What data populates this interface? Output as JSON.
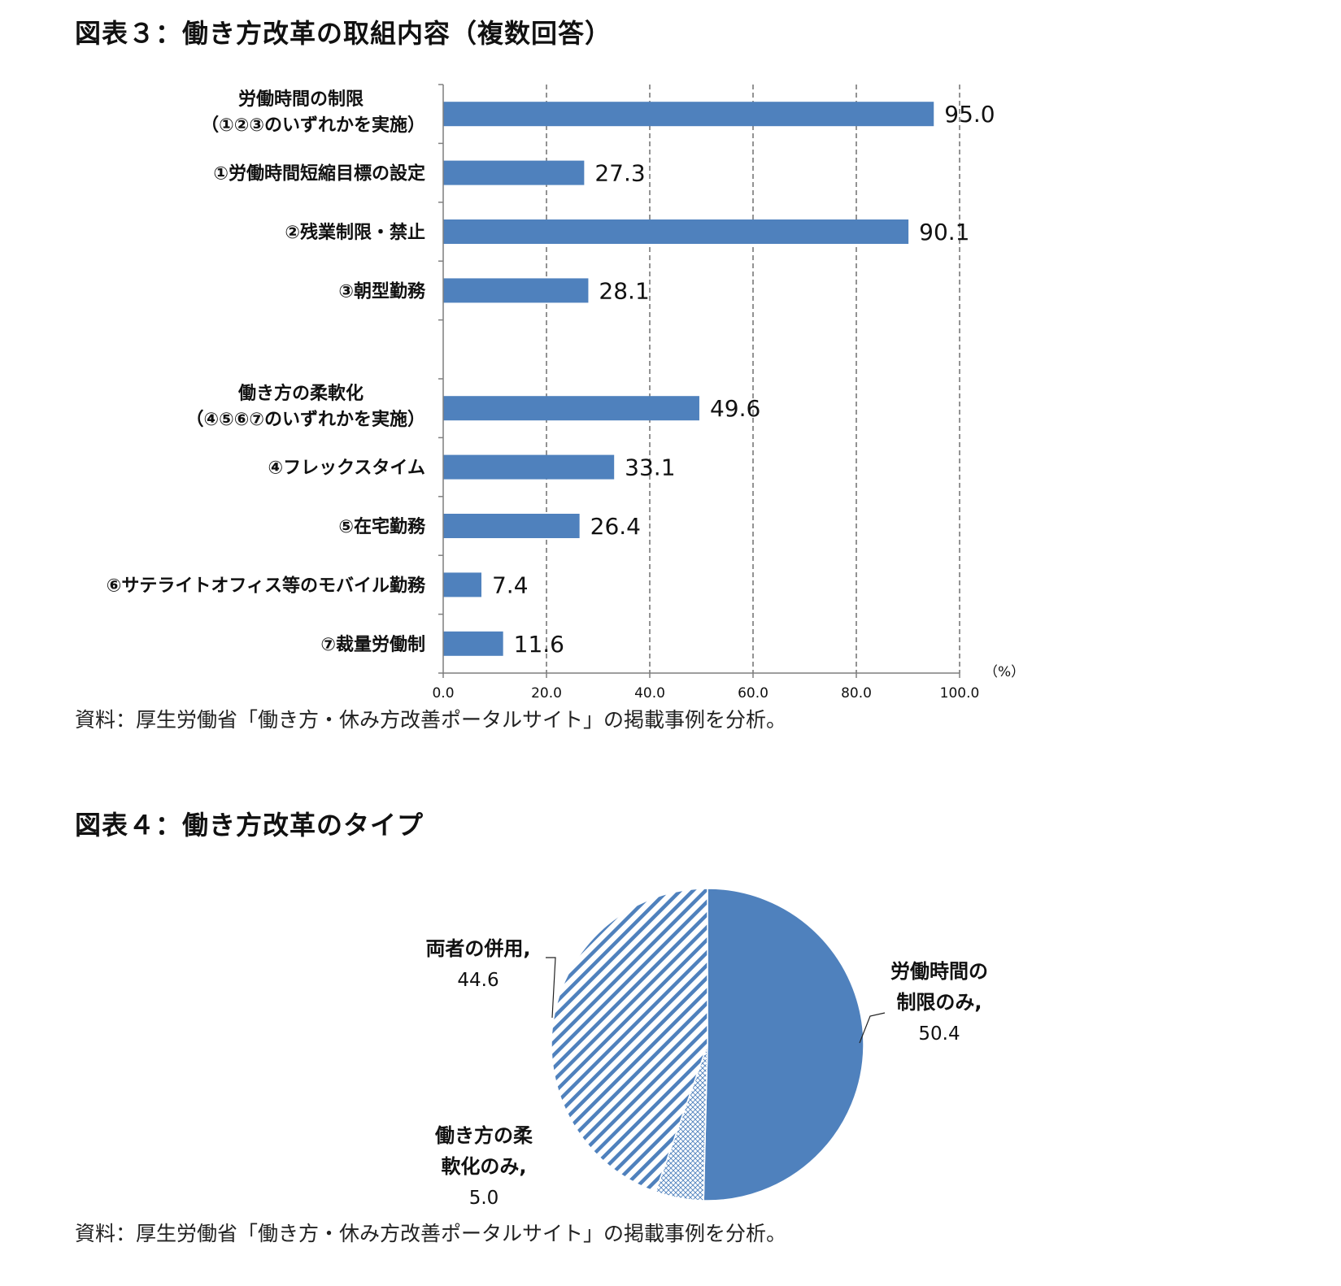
{
  "figure3": {
    "title": "図表３：働き方改革の取組内容（複数回答）",
    "source": "資料：厚生労働省「働き方・休み方改善ポータルサイト」の掲載事例を分析。"
  },
  "figure4": {
    "title": "図表４：働き方改革のタイプ",
    "source": "資料：厚生労働省「働き方・休み方改善ポータルサイト」の掲載事例を分析。"
  },
  "colors": {
    "bar": "#4F81BD",
    "hatch": "#4F81BD",
    "axis": "#7f7f7f"
  },
  "chart_data": [
    {
      "type": "bar",
      "orientation": "horizontal",
      "categories": [
        [
          "労働時間の制限",
          "（①②③のいずれかを実施）"
        ],
        [
          "①労働時間短縮目標の設定"
        ],
        [
          "②残業制限・禁止"
        ],
        [
          "③朝型勤務"
        ],
        [],
        [
          "働き方の柔軟化",
          "（④⑤⑥⑦のいずれかを実施）"
        ],
        [
          "④フレックスタイム"
        ],
        [
          "⑤在宅勤務"
        ],
        [
          "⑥サテライトオフィス等のモバイル勤務"
        ],
        [
          "⑦裁量労働制"
        ]
      ],
      "values": [
        95.0,
        27.3,
        90.1,
        28.1,
        null,
        49.6,
        33.1,
        26.4,
        7.4,
        11.6
      ],
      "value_labels": [
        "95.0",
        "27.3",
        "90.1",
        "28.1",
        "",
        "49.6",
        "33.1",
        "26.4",
        "7.4",
        "11.6"
      ],
      "xlim": [
        0,
        100
      ],
      "xticks": [
        "0.0",
        "20.0",
        "40.0",
        "60.0",
        "80.0",
        "100.0"
      ],
      "unit_label": "（%）",
      "grid": "vertical dashed"
    },
    {
      "type": "pie",
      "slices": [
        {
          "label": [
            "労働時間の",
            "制限のみ,"
          ],
          "value": 50.4,
          "value_label": "50.4",
          "fill": "solid"
        },
        {
          "label": [
            "働き方の柔",
            "軟化のみ,"
          ],
          "value": 5.0,
          "value_label": "5.0",
          "fill": "crosshatch"
        },
        {
          "label": [
            "両者の併用,"
          ],
          "value": 44.6,
          "value_label": "44.6",
          "fill": "diagonal-stripes"
        }
      ]
    }
  ]
}
